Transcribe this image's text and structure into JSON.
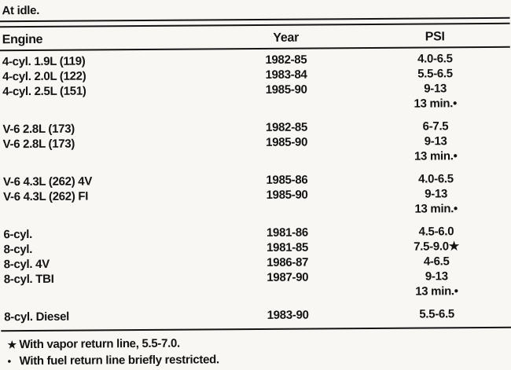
{
  "caption": "At idle.",
  "table": {
    "columns": [
      "Engine",
      "Year",
      "PSI"
    ],
    "rows": [
      {
        "engine": "4-cyl. 1.9L (119)",
        "year": "1982-85",
        "psi": "4.0-6.5"
      },
      {
        "engine": "4-cyl. 2.0L (122)",
        "year": "1983-84",
        "psi": "5.5-6.5"
      },
      {
        "engine": "4-cyl. 2.5L (151)",
        "year": "1985-90",
        "psi": "9-13"
      },
      {
        "engine": "",
        "year": "",
        "psi": "13 min.•"
      },
      {
        "engine": "V-6 2.8L (173)",
        "year": "1982-85",
        "psi": "6-7.5",
        "group_start": true
      },
      {
        "engine": "V-6 2.8L (173)",
        "year": "1985-90",
        "psi": "9-13"
      },
      {
        "engine": "",
        "year": "",
        "psi": "13 min.•"
      },
      {
        "engine": "V-6 4.3L (262) 4V",
        "year": "1985-86",
        "psi": "4.0-6.5",
        "group_start": true
      },
      {
        "engine": "V-6 4.3L (262) FI",
        "year": "1985-90",
        "psi": "9-13"
      },
      {
        "engine": "",
        "year": "",
        "psi": "13 min.•"
      },
      {
        "engine": "6-cyl.",
        "year": "1981-86",
        "psi": "4.5-6.0",
        "group_start": true
      },
      {
        "engine": "8-cyl.",
        "year": "1981-85",
        "psi": "7.5-9.0★"
      },
      {
        "engine": "8-cyl. 4V",
        "year": "1986-87",
        "psi": "4-6.5"
      },
      {
        "engine": "8-cyl. TBI",
        "year": "1987-90",
        "psi": "9-13"
      },
      {
        "engine": "",
        "year": "",
        "psi": "13 min.•"
      },
      {
        "engine": "8-cyl. Diesel",
        "year": "1983-90",
        "psi": "5.5-6.5",
        "group_start": true
      }
    ]
  },
  "footnotes": [
    {
      "marker": "★",
      "text": "With vapor return line, 5.5-7.0."
    },
    {
      "marker": "•",
      "text": "With fuel return line briefly restricted."
    }
  ],
  "colors": {
    "ink": "#131313",
    "paper": "#f8f7f4"
  }
}
